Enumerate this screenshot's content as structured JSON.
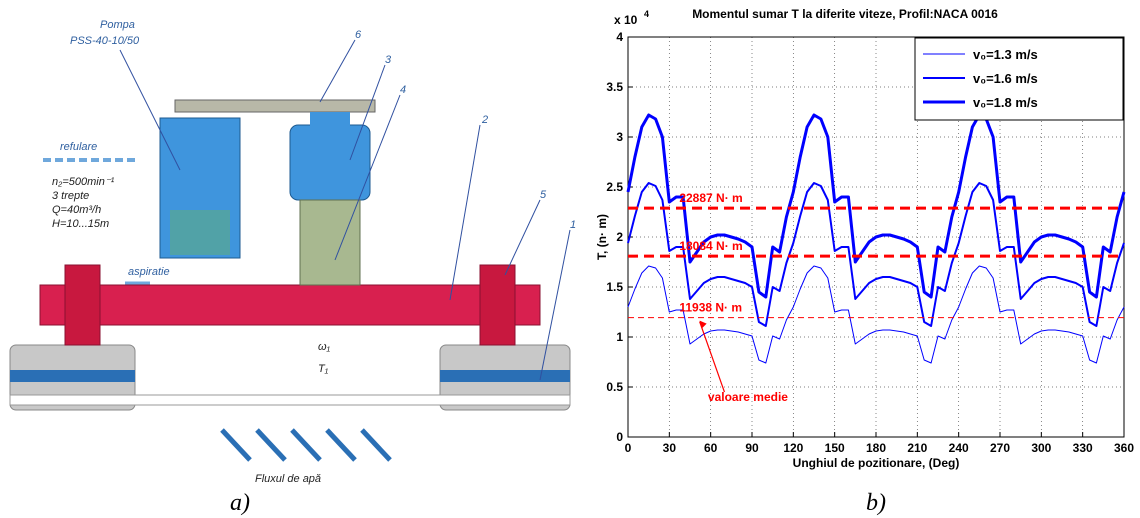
{
  "diagram": {
    "pump_title": "Pompa",
    "pump_model": "PSS-40-10/50",
    "callouts": [
      "6",
      "3",
      "4",
      "2",
      "5",
      "1"
    ],
    "discharge": "refulare",
    "suction": "aspiratie",
    "pump_specs": [
      "n₂=500min⁻¹",
      "3 trepte",
      "Q=40m³/h",
      "H=10...15m"
    ],
    "omega": "ω₁",
    "torque": "T₁",
    "flow": "Fluxul de apă",
    "caption": "a)"
  },
  "chart_data": {
    "type": "line",
    "title": "Momentul sumar T la diferite viteze, Profil:NACA 0016",
    "caption": "b)",
    "x_label": "Unghiul de pozitionare, (Deg)",
    "y_label": "T, (n· m)",
    "y_multiplier": "x 10",
    "y_multiplier_exp": "4",
    "xlim": [
      0,
      360
    ],
    "xticks": [
      0,
      30,
      60,
      90,
      120,
      150,
      180,
      210,
      240,
      270,
      300,
      330,
      360
    ],
    "ylim": [
      0,
      4
    ],
    "yticks": [
      0,
      0.5,
      1,
      1.5,
      2,
      2.5,
      3,
      3.5,
      4
    ],
    "grid": true,
    "legend": "top-right",
    "x": [
      0,
      5,
      10,
      15,
      20,
      25,
      30,
      35,
      40,
      45,
      50,
      55,
      60,
      65,
      70,
      75,
      80,
      85,
      90,
      95,
      100,
      105,
      110,
      115,
      120,
      125,
      130,
      135,
      140,
      145,
      150,
      155,
      160,
      165,
      170,
      175,
      180,
      185,
      190,
      195,
      200,
      205,
      210,
      215,
      220,
      225,
      230,
      235,
      240,
      245,
      250,
      255,
      260,
      265,
      270,
      275,
      280,
      285,
      290,
      295,
      300,
      305,
      310,
      315,
      320,
      325,
      330,
      335,
      340,
      345,
      350,
      355,
      360
    ],
    "series": [
      {
        "name": "v₀=1.3 m/s",
        "color": "#0000ff",
        "width": 1,
        "values": [
          1.3,
          1.48,
          1.64,
          1.71,
          1.69,
          1.59,
          1.25,
          1.27,
          1.27,
          0.93,
          0.98,
          1.03,
          1.06,
          1.07,
          1.07,
          1.06,
          1.05,
          1.03,
          1.01,
          0.77,
          0.74,
          1.01,
          0.98,
          1.17,
          1.3,
          1.48,
          1.64,
          1.71,
          1.69,
          1.59,
          1.25,
          1.27,
          1.27,
          0.93,
          0.98,
          1.03,
          1.06,
          1.07,
          1.07,
          1.06,
          1.05,
          1.03,
          1.01,
          0.77,
          0.74,
          1.01,
          0.98,
          1.17,
          1.3,
          1.48,
          1.64,
          1.71,
          1.69,
          1.59,
          1.25,
          1.27,
          1.27,
          0.93,
          0.98,
          1.03,
          1.06,
          1.07,
          1.07,
          1.06,
          1.05,
          1.03,
          1.01,
          0.77,
          0.74,
          1.01,
          0.98,
          1.17,
          1.3
        ]
      },
      {
        "name": "v₀=1.6 m/s",
        "color": "#0000ff",
        "width": 2,
        "values": [
          1.94,
          2.21,
          2.45,
          2.54,
          2.51,
          2.37,
          1.86,
          1.9,
          1.9,
          1.38,
          1.46,
          1.54,
          1.58,
          1.6,
          1.6,
          1.58,
          1.56,
          1.54,
          1.5,
          1.15,
          1.11,
          1.5,
          1.46,
          1.74,
          1.94,
          2.21,
          2.45,
          2.54,
          2.51,
          2.37,
          1.86,
          1.9,
          1.9,
          1.38,
          1.46,
          1.54,
          1.58,
          1.6,
          1.6,
          1.58,
          1.56,
          1.54,
          1.5,
          1.15,
          1.11,
          1.5,
          1.46,
          1.74,
          1.94,
          2.21,
          2.45,
          2.54,
          2.51,
          2.37,
          1.86,
          1.9,
          1.9,
          1.38,
          1.46,
          1.54,
          1.58,
          1.6,
          1.6,
          1.58,
          1.56,
          1.54,
          1.5,
          1.15,
          1.11,
          1.5,
          1.46,
          1.74,
          1.94
        ]
      },
      {
        "name": "v₀=1.8 m/s",
        "color": "#0000ff",
        "width": 3,
        "values": [
          2.45,
          2.8,
          3.1,
          3.22,
          3.18,
          3.0,
          2.35,
          2.4,
          2.4,
          1.75,
          1.85,
          1.95,
          2.0,
          2.02,
          2.02,
          2.0,
          1.98,
          1.95,
          1.9,
          1.45,
          1.4,
          1.9,
          1.85,
          2.2,
          2.45,
          2.8,
          3.1,
          3.22,
          3.18,
          3.0,
          2.35,
          2.4,
          2.4,
          1.75,
          1.85,
          1.95,
          2.0,
          2.02,
          2.02,
          2.0,
          1.98,
          1.95,
          1.9,
          1.45,
          1.4,
          1.9,
          1.85,
          2.2,
          2.45,
          2.8,
          3.1,
          3.22,
          3.18,
          3.0,
          2.35,
          2.4,
          2.4,
          1.75,
          1.85,
          1.95,
          2.0,
          2.02,
          2.02,
          2.0,
          1.98,
          1.95,
          1.9,
          1.45,
          1.4,
          1.9,
          1.85,
          2.2,
          2.45
        ]
      }
    ],
    "mean_lines": [
      {
        "value": 2.2887,
        "label": "22887 N· m",
        "color": "#ff0000"
      },
      {
        "value": 1.8084,
        "label": "18084 N· m",
        "color": "#ff0000"
      },
      {
        "value": 1.1938,
        "label": "11938 N· m",
        "color": "#ff0000"
      }
    ],
    "annotation": {
      "text": "valoare medie",
      "color": "#ff0000"
    }
  }
}
